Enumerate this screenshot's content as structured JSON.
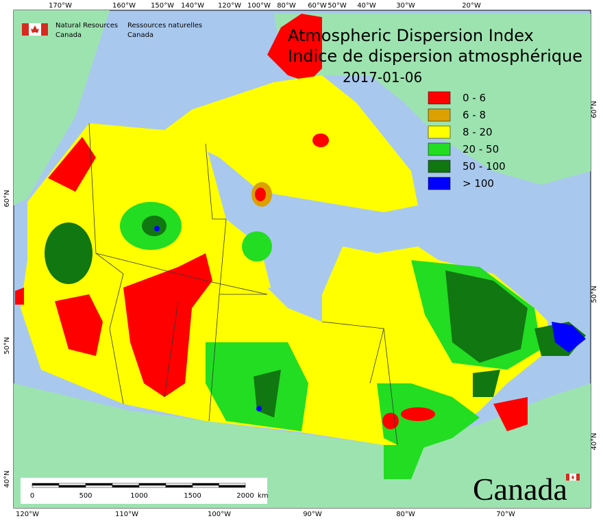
{
  "header": {
    "agency_en": [
      "Natural Resources",
      "Canada"
    ],
    "agency_fr": [
      "Ressources naturelles",
      "Canada"
    ]
  },
  "title": [
    "Atmospheric Dispersion Index",
    "Indice de dispersion atmosphérique"
  ],
  "date": "2017-01-06",
  "legend": [
    {
      "label": "0 - 6",
      "color": "#ff0000"
    },
    {
      "label": "6 - 8",
      "color": "#dca000"
    },
    {
      "label": "8 - 20",
      "color": "#ffff00"
    },
    {
      "label": "20 - 50",
      "color": "#22dd22"
    },
    {
      "label": "50 - 100",
      "color": "#117711"
    },
    {
      "label": "> 100",
      "color": "#0000ff"
    }
  ],
  "top_labels": [
    "170°W",
    "160°W",
    "150°W",
    "140°W",
    "120°W",
    "100°W",
    "80°W",
    "60°W",
    "50°W",
    "40°W",
    "30°W",
    "20°W"
  ],
  "bottom_labels": [
    "120°W",
    "110°W",
    "100°W",
    "90°W",
    "80°W",
    "70°W"
  ],
  "left_labels": [
    "60°N",
    "50°N",
    "40°N"
  ],
  "right_labels": [
    "60°N",
    "50°N",
    "40°N"
  ],
  "scale_bar": {
    "labels": [
      "0",
      "500",
      "1000",
      "1500",
      "2000"
    ],
    "unit": "km"
  },
  "wordmark": "Canada"
}
